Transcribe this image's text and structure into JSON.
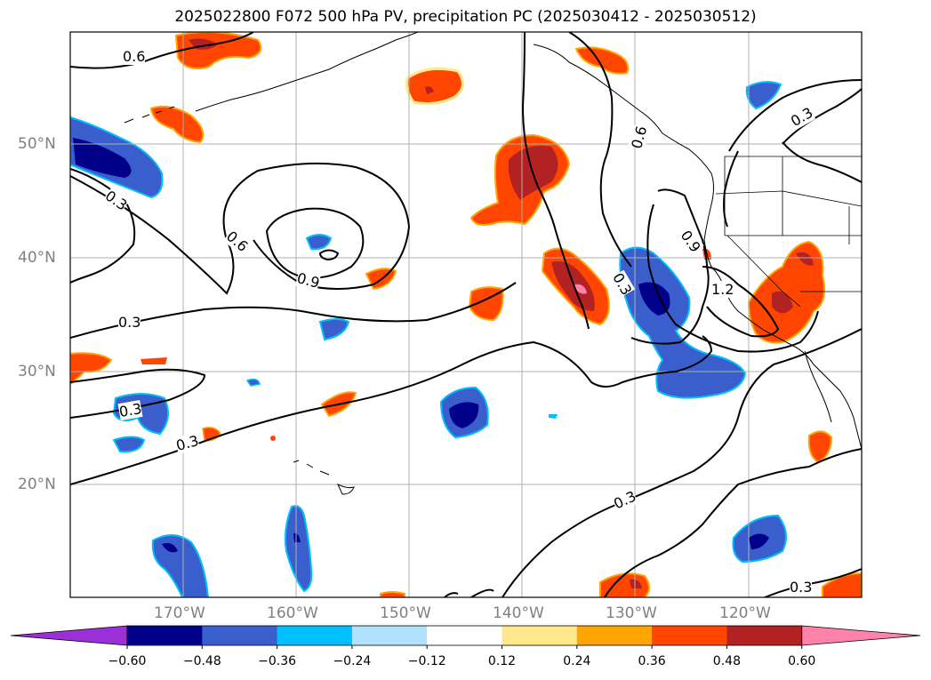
{
  "title": "2025022800 F072 500 hPa PV, precipitation PC (2025030412 - 2025030512)",
  "lat_labels": [
    "50°N",
    "40°N",
    "30°N",
    "20°N"
  ],
  "lon_labels": [
    "170°W",
    "160°W",
    "150°W",
    "140°W",
    "130°W",
    "120°W"
  ],
  "contour_labels": [
    "0.6",
    "0.3",
    "0.6",
    "0.9",
    "0.3",
    "0.3",
    "0.3",
    "0.6",
    "0.3",
    "0.9",
    "1.2",
    "0.3",
    "0.3",
    "0.3"
  ],
  "colorbar": {
    "ticks": [
      "−0.60",
      "−0.48",
      "−0.36",
      "−0.24",
      "−0.12",
      "0.12",
      "0.24",
      "0.36",
      "0.48",
      "0.60"
    ],
    "colors": [
      "#9b30d9",
      "#00008b",
      "#3a5fcd",
      "#00bfff",
      "#b0e2ff",
      "#ffffff",
      "#ffe88c",
      "#ffa500",
      "#ff4500",
      "#b22222",
      "#ff82ab"
    ]
  },
  "colors": {
    "neg_strong": "#00008b",
    "neg_mid": "#3a5fcd",
    "neg_light": "#00bfff",
    "neg_pale": "#b0e2ff",
    "pos_pale": "#ffe88c",
    "pos_light": "#ffa500",
    "pos_mid": "#ff4500",
    "pos_strong": "#b22222",
    "pos_max": "#ff82ab"
  }
}
